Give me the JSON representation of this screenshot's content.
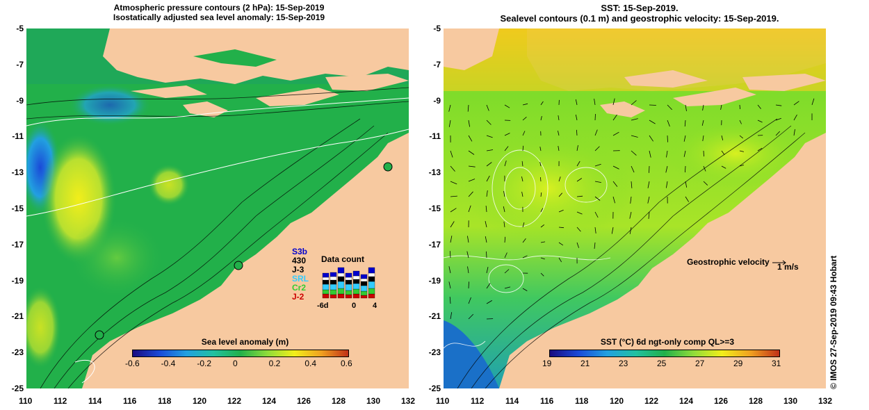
{
  "left_panel": {
    "title_line1": "Atmospheric pressure contours (2 hPa): 15-Sep-2019",
    "title_line2": "Isostatically adjusted sea level anomaly: 15-Sep-2019",
    "colorbar": {
      "label": "Sea level anomaly (m)",
      "ticks": [
        "-0.6",
        "-0.4",
        "-0.2",
        "0",
        "0.2",
        "0.4",
        "0.6"
      ]
    },
    "data_count": {
      "title": "Data count",
      "satellites": [
        {
          "name": "S3b",
          "color": "#0000cc"
        },
        {
          "name": "430",
          "color": "#000000"
        },
        {
          "name": "J-3",
          "color": "#000000"
        },
        {
          "name": "SRL",
          "color": "#33ccff"
        },
        {
          "name": "Cr2",
          "color": "#33cc33"
        },
        {
          "name": "J-2",
          "color": "#cc0000"
        }
      ],
      "axis_ticks": [
        "-6d",
        "0",
        "4"
      ]
    }
  },
  "right_panel": {
    "title_line1": "SST: 15-Sep-2019.",
    "title_line2": "Sealevel contours (0.1 m) and geostrophic velocity: 15-Sep-2019.",
    "colorbar": {
      "label": "SST (°C) 6d ngt-only comp QL>=3",
      "ticks": [
        "19",
        "21",
        "23",
        "25",
        "27",
        "29",
        "31"
      ]
    },
    "velocity_legend": {
      "label": "Geostrophic velocity",
      "scale": "1 m/s"
    }
  },
  "axes": {
    "x_ticks": [
      "110",
      "112",
      "114",
      "116",
      "118",
      "120",
      "122",
      "124",
      "126",
      "128",
      "130",
      "132"
    ],
    "y_ticks": [
      "-5",
      "-7",
      "-9",
      "-11",
      "-13",
      "-15",
      "-17",
      "-19",
      "-21",
      "-23",
      "-25"
    ]
  },
  "credit": "© IMOS 27-Sep-2019 09:43 Hobart",
  "colors": {
    "land": "#f7c9a0",
    "ocean_left": "#22b04a",
    "ocean_right": "#7fdc2a"
  }
}
